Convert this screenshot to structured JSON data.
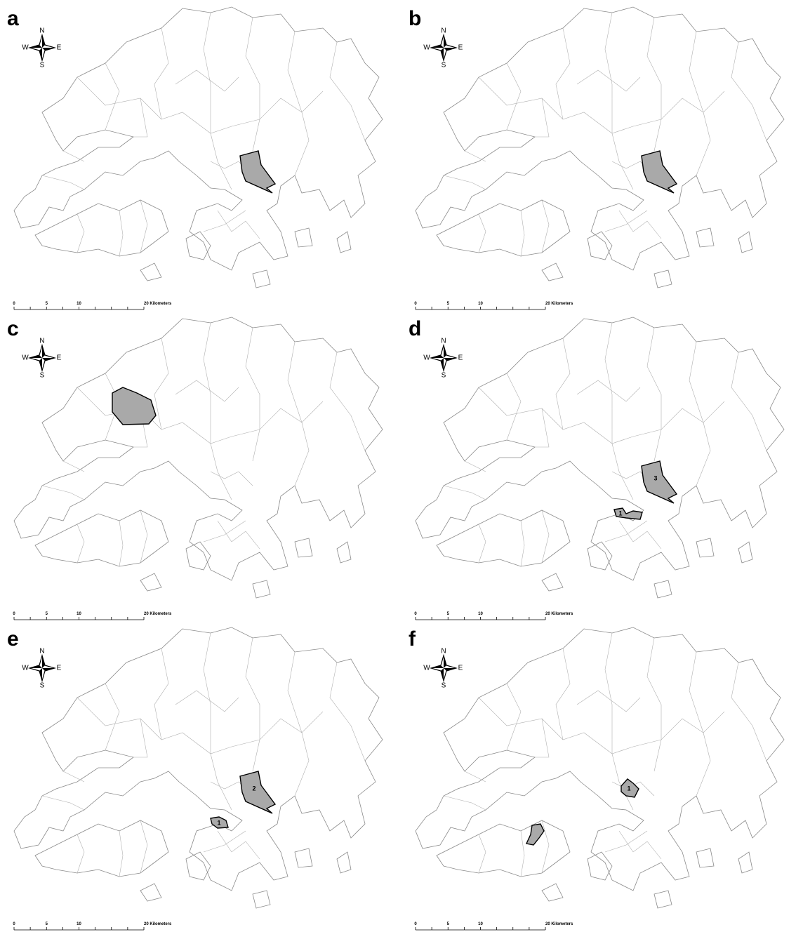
{
  "panels": [
    {
      "label": "a",
      "compass": {
        "n": "N",
        "w": "W",
        "e": "E",
        "s": "S"
      },
      "scale": [
        "0",
        "5",
        "10",
        "20 Kilometers"
      ]
    },
    {
      "label": "b",
      "compass": {
        "n": "N",
        "w": "W",
        "e": "E",
        "s": "S"
      },
      "scale": [
        "0",
        "5",
        "10",
        "20 Kilometers"
      ]
    },
    {
      "label": "c",
      "compass": {
        "n": "N",
        "w": "W",
        "e": "E",
        "s": "S"
      },
      "scale": [
        "0",
        "5",
        "10",
        "20 Kilometers"
      ]
    },
    {
      "label": "d",
      "compass": {
        "n": "N",
        "w": "W",
        "e": "E",
        "s": "S"
      },
      "scale": [
        "0",
        "5",
        "10",
        "20 Kilometers"
      ],
      "cluster_labels": [
        "3",
        "1"
      ]
    },
    {
      "label": "e",
      "compass": {
        "n": "N",
        "w": "W",
        "e": "E",
        "s": "S"
      },
      "scale": [
        "0",
        "5",
        "10",
        "20 Kilometers"
      ],
      "cluster_labels": [
        "2",
        "1"
      ]
    },
    {
      "label": "f",
      "compass": {
        "n": "N",
        "w": "W",
        "e": "E",
        "s": "S"
      },
      "scale": [
        "0",
        "5",
        "10",
        "20 Kilometers"
      ],
      "cluster_labels": [
        "1"
      ]
    }
  ]
}
